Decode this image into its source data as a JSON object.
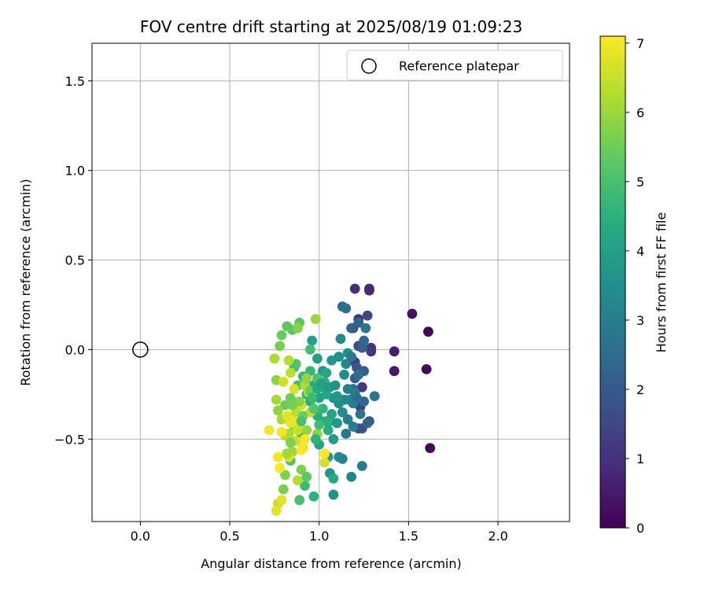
{
  "chart_data": {
    "type": "scatter",
    "title": "FOV centre drift starting at 2025/08/19 01:09:23",
    "xlabel": "Angular distance from reference (arcmin)",
    "ylabel": "Rotation from reference (arcmin)",
    "xlim": [
      -0.27,
      2.4
    ],
    "ylim": [
      -0.96,
      1.71
    ],
    "xticks": [
      0.0,
      0.5,
      1.0,
      1.5,
      2.0
    ],
    "xtick_labels": [
      "0.0",
      "0.5",
      "1.0",
      "1.5",
      "2.0"
    ],
    "yticks": [
      -0.5,
      0.0,
      0.5,
      1.0,
      1.5
    ],
    "ytick_labels": [
      "−0.5",
      "0.0",
      "0.5",
      "1.0",
      "1.5"
    ],
    "grid": true,
    "legend": {
      "position": "top-right",
      "entries": [
        {
          "label": "Reference platepar",
          "marker": "hollow-circle",
          "x": 0.0,
          "y": 0.0
        }
      ]
    },
    "colorbar": {
      "label": "Hours from first FF file",
      "range": [
        0,
        7.1
      ],
      "ticks": [
        0,
        1,
        2,
        3,
        4,
        5,
        6,
        7
      ],
      "tick_labels": [
        "0",
        "1",
        "2",
        "3",
        "4",
        "5",
        "6",
        "7"
      ],
      "colormap": "viridis"
    },
    "points": [
      [
        1.62,
        -0.55,
        0.0
      ],
      [
        1.61,
        0.1,
        0.05
      ],
      [
        1.6,
        -0.11,
        0.1
      ],
      [
        1.52,
        0.2,
        0.3
      ],
      [
        1.42,
        -0.12,
        0.5
      ],
      [
        1.42,
        -0.01,
        0.6
      ],
      [
        1.28,
        0.34,
        0.8
      ],
      [
        1.28,
        0.33,
        0.8
      ],
      [
        1.2,
        0.34,
        0.9
      ],
      [
        1.29,
        0.01,
        1.0
      ],
      [
        1.29,
        -0.01,
        1.1
      ],
      [
        1.22,
        0.17,
        1.0
      ],
      [
        1.24,
        -0.21,
        1.2
      ],
      [
        1.23,
        -0.32,
        1.3
      ],
      [
        1.19,
        0.12,
        1.3
      ],
      [
        1.2,
        -0.07,
        1.3
      ],
      [
        1.27,
        0.19,
        1.5
      ],
      [
        1.22,
        0.02,
        1.5
      ],
      [
        1.22,
        -0.44,
        1.6
      ],
      [
        1.24,
        -0.44,
        1.7
      ],
      [
        1.28,
        -0.4,
        1.8
      ],
      [
        1.21,
        -0.1,
        1.9
      ],
      [
        1.2,
        -0.16,
        2.0
      ],
      [
        1.25,
        -0.12,
        2.1
      ],
      [
        1.24,
        0.01,
        2.2
      ],
      [
        1.18,
        0.12,
        2.2
      ],
      [
        1.22,
        0.15,
        2.3
      ],
      [
        1.25,
        -0.29,
        2.4
      ],
      [
        1.19,
        -0.22,
        2.4
      ],
      [
        1.13,
        0.24,
        2.5
      ],
      [
        1.15,
        0.23,
        2.6
      ],
      [
        1.31,
        -0.26,
        2.7
      ],
      [
        1.26,
        0.12,
        2.7
      ],
      [
        1.15,
        -0.47,
        2.8
      ],
      [
        1.24,
        -0.65,
        2.9
      ],
      [
        1.19,
        -0.43,
        3.0
      ],
      [
        1.13,
        -0.61,
        3.0
      ],
      [
        1.16,
        -0.22,
        3.1
      ],
      [
        1.14,
        -0.28,
        3.1
      ],
      [
        1.18,
        -0.71,
        3.2
      ],
      [
        1.11,
        -0.6,
        3.3
      ],
      [
        1.12,
        0.06,
        3.3
      ],
      [
        1.14,
        -0.14,
        3.4
      ],
      [
        1.16,
        -0.02,
        3.4
      ],
      [
        1.11,
        -0.3,
        3.5
      ],
      [
        1.08,
        -0.27,
        3.5
      ],
      [
        1.06,
        -0.69,
        3.6
      ],
      [
        1.08,
        -0.81,
        3.6
      ],
      [
        1.1,
        -0.26,
        3.7
      ],
      [
        1.07,
        -0.06,
        3.7
      ],
      [
        1.05,
        -0.6,
        3.8
      ],
      [
        1.02,
        -0.12,
        3.8
      ],
      [
        1.04,
        -0.4,
        3.9
      ],
      [
        0.99,
        -0.05,
        3.9
      ],
      [
        1.0,
        -0.27,
        4.0
      ],
      [
        0.96,
        0.05,
        4.0
      ],
      [
        1.03,
        -0.21,
        4.1
      ],
      [
        1.0,
        -0.53,
        4.1
      ],
      [
        0.97,
        -0.2,
        4.2
      ],
      [
        1.04,
        -0.25,
        4.2
      ],
      [
        1.08,
        -0.72,
        4.3
      ],
      [
        0.99,
        -0.37,
        4.3
      ],
      [
        1.01,
        -0.4,
        4.4
      ],
      [
        0.95,
        -0.29,
        4.4
      ],
      [
        0.97,
        -0.82,
        4.5
      ],
      [
        1.06,
        -0.4,
        4.5
      ],
      [
        0.93,
        -0.25,
        4.6
      ],
      [
        0.98,
        -0.34,
        4.6
      ],
      [
        0.91,
        -0.15,
        4.7
      ],
      [
        0.95,
        -0.12,
        4.7
      ],
      [
        0.92,
        -0.76,
        4.8
      ],
      [
        0.9,
        -0.47,
        4.8
      ],
      [
        0.88,
        -0.2,
        4.9
      ],
      [
        0.95,
        0.0,
        4.9
      ],
      [
        0.89,
        -0.84,
        5.0
      ],
      [
        0.86,
        -0.1,
        5.0
      ],
      [
        0.84,
        -0.62,
        5.1
      ],
      [
        0.87,
        -0.08,
        5.1
      ],
      [
        0.85,
        0.11,
        5.2
      ],
      [
        0.89,
        0.15,
        5.3
      ],
      [
        0.82,
        0.13,
        5.3
      ],
      [
        0.79,
        0.08,
        5.4
      ],
      [
        0.86,
        -0.43,
        5.4
      ],
      [
        0.84,
        -0.27,
        5.5
      ],
      [
        0.81,
        -0.31,
        5.5
      ],
      [
        0.78,
        0.02,
        5.6
      ],
      [
        0.8,
        -0.78,
        5.6
      ],
      [
        0.81,
        -0.7,
        5.7
      ],
      [
        0.9,
        -0.67,
        5.7
      ],
      [
        0.88,
        0.12,
        5.8
      ],
      [
        0.76,
        -0.17,
        5.8
      ],
      [
        0.93,
        -0.45,
        5.9
      ],
      [
        0.77,
        -0.34,
        5.9
      ],
      [
        0.98,
        0.17,
        6.0
      ],
      [
        0.85,
        -0.57,
        6.0
      ],
      [
        0.79,
        -0.39,
        6.1
      ],
      [
        0.76,
        -0.28,
        6.1
      ],
      [
        0.83,
        -0.47,
        6.2
      ],
      [
        0.92,
        -0.2,
        6.2
      ],
      [
        0.88,
        -0.73,
        6.3
      ],
      [
        0.81,
        -0.48,
        6.3
      ],
      [
        0.95,
        -0.35,
        6.4
      ],
      [
        0.84,
        -0.13,
        6.4
      ],
      [
        0.87,
        -0.51,
        6.5
      ],
      [
        0.77,
        -0.86,
        6.5
      ],
      [
        1.03,
        -0.63,
        6.6
      ],
      [
        0.8,
        -0.18,
        6.6
      ],
      [
        0.89,
        -0.42,
        6.7
      ],
      [
        0.83,
        -0.6,
        6.7
      ],
      [
        0.76,
        -0.9,
        6.8
      ],
      [
        0.79,
        -0.84,
        6.8
      ],
      [
        0.86,
        -0.4,
        6.9
      ],
      [
        0.91,
        -0.55,
        6.9
      ],
      [
        0.72,
        -0.45,
        7.0
      ],
      [
        0.77,
        -0.6,
        7.0
      ],
      [
        0.79,
        -0.46,
        7.0
      ],
      [
        0.78,
        -0.66,
        7.05
      ],
      [
        0.9,
        -0.56,
        7.05
      ],
      [
        1.03,
        -0.58,
        7.1
      ],
      [
        0.92,
        -0.5,
        7.1
      ],
      [
        0.84,
        -0.41,
        6.9
      ],
      [
        0.82,
        -0.37,
        6.8
      ],
      [
        0.86,
        -0.22,
        6.7
      ],
      [
        0.9,
        -0.31,
        6.6
      ],
      [
        0.88,
        -0.45,
        6.5
      ],
      [
        0.94,
        -0.24,
        6.2
      ],
      [
        0.83,
        -0.06,
        6.3
      ],
      [
        0.87,
        -0.35,
        6.4
      ],
      [
        0.75,
        -0.05,
        6.2
      ],
      [
        0.82,
        -0.58,
        6.1
      ],
      [
        0.99,
        -0.47,
        5.9
      ],
      [
        0.93,
        -0.16,
        5.9
      ],
      [
        0.89,
        -0.29,
        5.8
      ],
      [
        0.84,
        -0.52,
        5.7
      ],
      [
        0.85,
        -0.31,
        5.6
      ],
      [
        0.91,
        -0.37,
        5.5
      ],
      [
        0.95,
        -0.23,
        5.4
      ],
      [
        0.93,
        -0.71,
        5.3
      ],
      [
        0.97,
        -0.33,
        5.2
      ],
      [
        0.99,
        -0.16,
        5.1
      ],
      [
        0.9,
        -0.4,
        5.0
      ],
      [
        1.0,
        -0.42,
        4.9
      ],
      [
        0.96,
        -0.27,
        4.8
      ],
      [
        1.02,
        -0.33,
        4.7
      ],
      [
        0.98,
        -0.5,
        4.6
      ],
      [
        1.03,
        -0.18,
        4.5
      ],
      [
        1.05,
        -0.45,
        4.4
      ],
      [
        0.99,
        -0.22,
        4.3
      ],
      [
        1.04,
        -0.13,
        4.2
      ],
      [
        1.07,
        -0.36,
        4.1
      ],
      [
        1.01,
        -0.19,
        4.0
      ],
      [
        1.08,
        -0.5,
        3.9
      ],
      [
        1.06,
        -0.21,
        3.8
      ],
      [
        1.1,
        -0.41,
        3.7
      ],
      [
        1.09,
        -0.2,
        3.6
      ],
      [
        1.11,
        -0.04,
        3.5
      ],
      [
        1.13,
        -0.35,
        3.4
      ],
      [
        1.17,
        -0.28,
        3.3
      ],
      [
        1.15,
        -0.08,
        3.2
      ],
      [
        1.19,
        -0.3,
        3.1
      ],
      [
        1.16,
        -0.39,
        3.0
      ],
      [
        1.2,
        -0.24,
        2.9
      ],
      [
        1.18,
        -0.04,
        2.8
      ],
      [
        1.23,
        -0.36,
        2.7
      ],
      [
        1.22,
        -0.14,
        2.6
      ],
      [
        1.21,
        -0.27,
        2.5
      ],
      [
        1.25,
        0.05,
        2.4
      ],
      [
        1.27,
        -0.41,
        2.3
      ]
    ]
  }
}
